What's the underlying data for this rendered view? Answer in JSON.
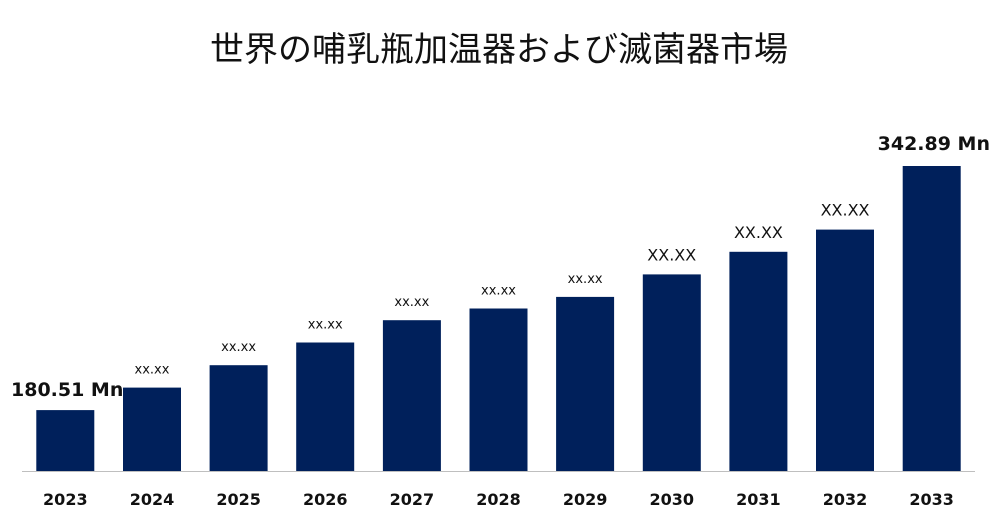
{
  "chart_data": {
    "type": "bar",
    "title": "世界の哺乳瓶加温器および滅菌器市場",
    "xlabel": "",
    "ylabel": "",
    "categories": [
      "2023",
      "2024",
      "2025",
      "2026",
      "2027",
      "2028",
      "2029",
      "2030",
      "2031",
      "2032",
      "2033"
    ],
    "values": [
      180.51,
      195.5,
      210.4,
      225.5,
      240.3,
      248.1,
      255.8,
      270.8,
      285.8,
      300.6,
      342.89
    ],
    "data_labels": [
      "180.51 Mn",
      "xx.xx",
      "xx.xx",
      "xx.xx",
      "xx.xx",
      "xx.xx",
      "xx.xx",
      "XX.XX",
      "XX.XX",
      "XX.XX",
      "342.89  Mn"
    ],
    "ylim": [
      140,
      360
    ],
    "grid": false,
    "legend": "none",
    "bar_color": "#00205b",
    "axis_color": "#bfbfbf"
  }
}
